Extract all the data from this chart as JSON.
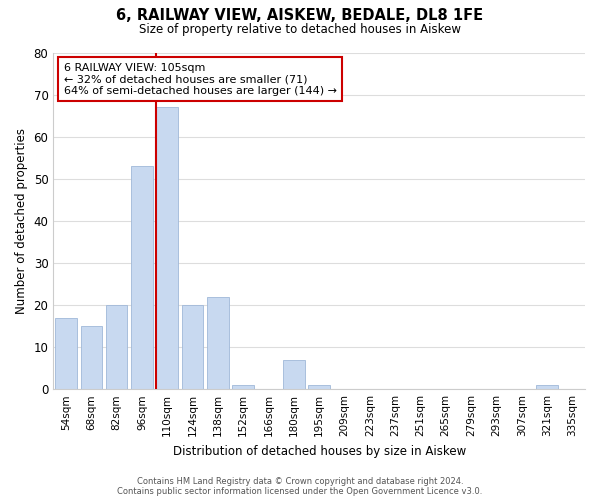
{
  "title": "6, RAILWAY VIEW, AISKEW, BEDALE, DL8 1FE",
  "subtitle": "Size of property relative to detached houses in Aiskew",
  "xlabel": "Distribution of detached houses by size in Aiskew",
  "ylabel": "Number of detached properties",
  "bar_labels": [
    "54sqm",
    "68sqm",
    "82sqm",
    "96sqm",
    "110sqm",
    "124sqm",
    "138sqm",
    "152sqm",
    "166sqm",
    "180sqm",
    "195sqm",
    "209sqm",
    "223sqm",
    "237sqm",
    "251sqm",
    "265sqm",
    "279sqm",
    "293sqm",
    "307sqm",
    "321sqm",
    "335sqm"
  ],
  "bar_heights": [
    17,
    15,
    20,
    53,
    67,
    20,
    22,
    1,
    0,
    7,
    1,
    0,
    0,
    0,
    0,
    0,
    0,
    0,
    0,
    1,
    0
  ],
  "bar_color": "#c8d9f0",
  "bar_edge_color": "#a0b8d8",
  "property_line_color": "#cc0000",
  "annotation_text": "6 RAILWAY VIEW: 105sqm\n← 32% of detached houses are smaller (71)\n64% of semi-detached houses are larger (144) →",
  "annotation_box_color": "#ffffff",
  "annotation_box_edge": "#cc0000",
  "ylim": [
    0,
    80
  ],
  "yticks": [
    0,
    10,
    20,
    30,
    40,
    50,
    60,
    70,
    80
  ],
  "footer_line1": "Contains HM Land Registry data © Crown copyright and database right 2024.",
  "footer_line2": "Contains public sector information licensed under the Open Government Licence v3.0.",
  "background_color": "#ffffff",
  "grid_color": "#dddddd"
}
